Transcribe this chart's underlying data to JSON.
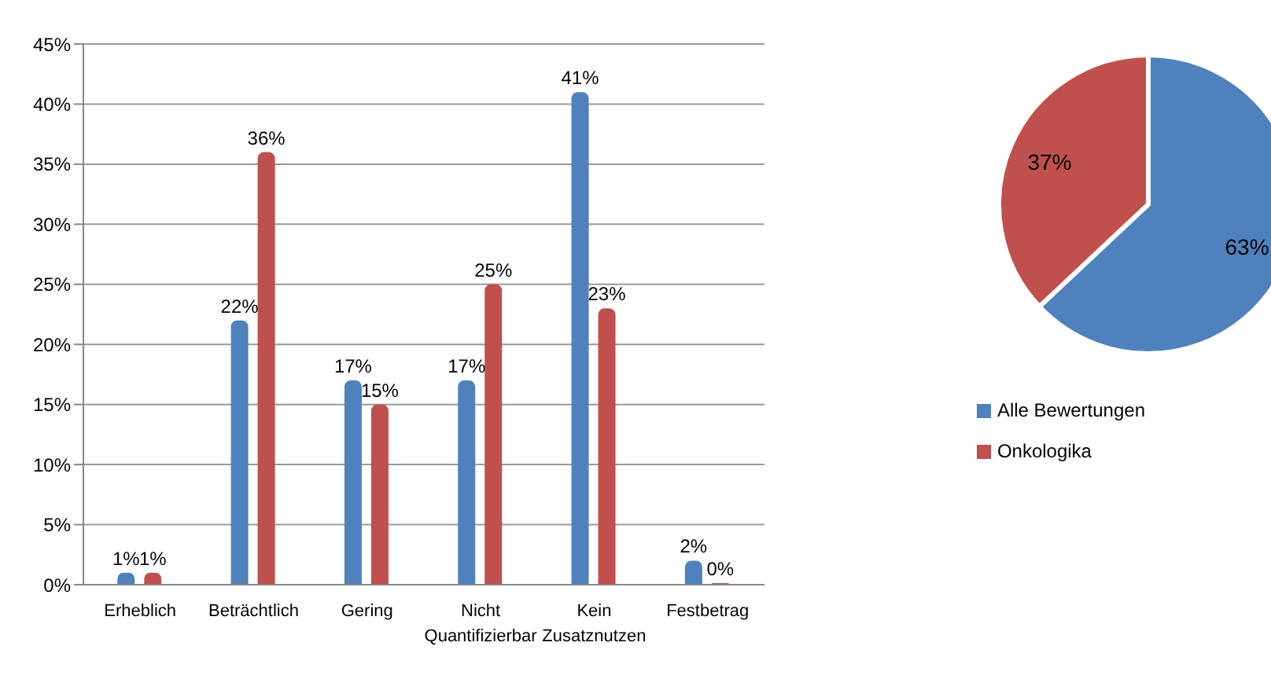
{
  "chart_data": [
    {
      "type": "bar",
      "categories": [
        "Erheblich",
        "Beträchtlich",
        "Gering",
        "Nicht Quantifizierbar",
        "Kein Zusatznutzen",
        "Festbetrag"
      ],
      "series": [
        {
          "name": "Alle Bewertungen",
          "color": "#4f81bd",
          "values": [
            1,
            22,
            17,
            17,
            41,
            2
          ],
          "value_labels": [
            "1%",
            "22%",
            "17%",
            "17%",
            "41%",
            "2%"
          ]
        },
        {
          "name": "Onkologika",
          "color": "#c0504d",
          "values": [
            1,
            36,
            15,
            25,
            23,
            0
          ],
          "value_labels": [
            "1%",
            "36%",
            "15%",
            "25%",
            "23%",
            "0%"
          ]
        }
      ],
      "ylim": [
        0,
        45
      ],
      "yticks": [
        {
          "value": 0,
          "label": "0%"
        },
        {
          "value": 5,
          "label": "5%"
        },
        {
          "value": 10,
          "label": "10%"
        },
        {
          "value": 15,
          "label": "15%"
        },
        {
          "value": 20,
          "label": "20%"
        },
        {
          "value": 25,
          "label": "25%"
        },
        {
          "value": 30,
          "label": "30%"
        },
        {
          "value": 35,
          "label": "35%"
        },
        {
          "value": 40,
          "label": "40%"
        },
        {
          "value": 45,
          "label": "45%"
        }
      ],
      "grid": "y",
      "legend": "right"
    },
    {
      "type": "pie",
      "categories": [
        null,
        null
      ],
      "values": [
        63,
        37
      ],
      "colors": [
        "#4f81bd",
        "#c0504d"
      ],
      "value_labels": [
        "63%",
        "37%"
      ]
    }
  ]
}
